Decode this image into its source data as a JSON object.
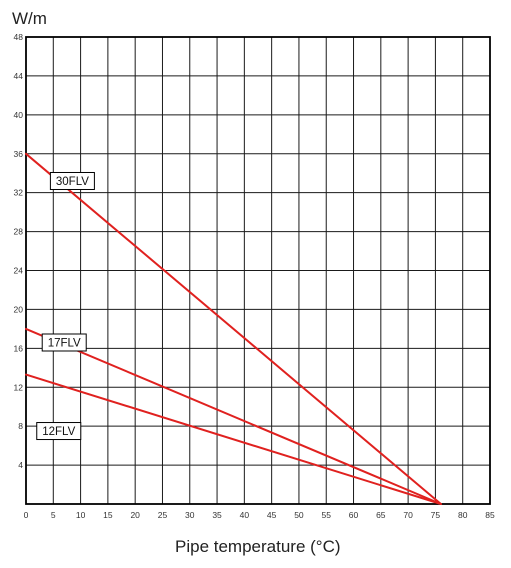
{
  "chart_data": {
    "type": "line",
    "title": "",
    "ylabel": "W/m",
    "xlabel": "Pipe temperature (°C)",
    "xlim": [
      0,
      85
    ],
    "ylim": [
      0,
      48
    ],
    "x_ticks": [
      0,
      5,
      10,
      15,
      20,
      25,
      30,
      35,
      40,
      45,
      50,
      55,
      60,
      65,
      70,
      75,
      80,
      85
    ],
    "y_ticks": [
      4,
      8,
      12,
      16,
      20,
      24,
      28,
      32,
      36,
      40,
      44,
      48
    ],
    "grid": true,
    "line_color": "#e0211f",
    "series": [
      {
        "name": "30FLV",
        "x": [
          0,
          76
        ],
        "y": [
          36,
          0
        ]
      },
      {
        "name": "17FLV",
        "x": [
          0,
          76
        ],
        "y": [
          18,
          0
        ]
      },
      {
        "name": "12FLV",
        "x": [
          0,
          76
        ],
        "y": [
          13.3,
          0
        ]
      }
    ]
  }
}
